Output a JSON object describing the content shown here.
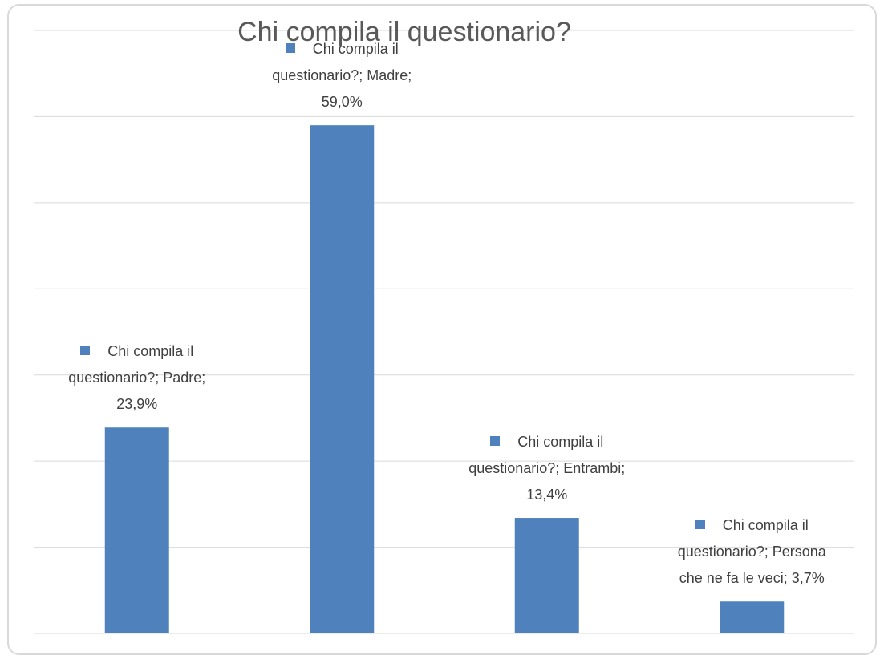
{
  "chart_data": {
    "type": "bar",
    "title": "Chi compila il questionario?",
    "values": [
      23.9,
      59.0,
      13.4,
      3.7
    ],
    "value_labels": [
      "Chi compila il questionario?; Padre; 23,9%",
      "Chi compila il questionario?; Madre; 59,0%",
      "Chi compila il questionario?; Entrambi; 13,4%",
      "Chi compila il questionario?; Persona che ne fa le veci; 3,7%"
    ],
    "color": "#4f81bd",
    "ylim": [
      0,
      70
    ],
    "yticks": [
      0,
      10,
      20,
      30,
      40,
      50,
      60,
      70
    ],
    "grid": true
  }
}
